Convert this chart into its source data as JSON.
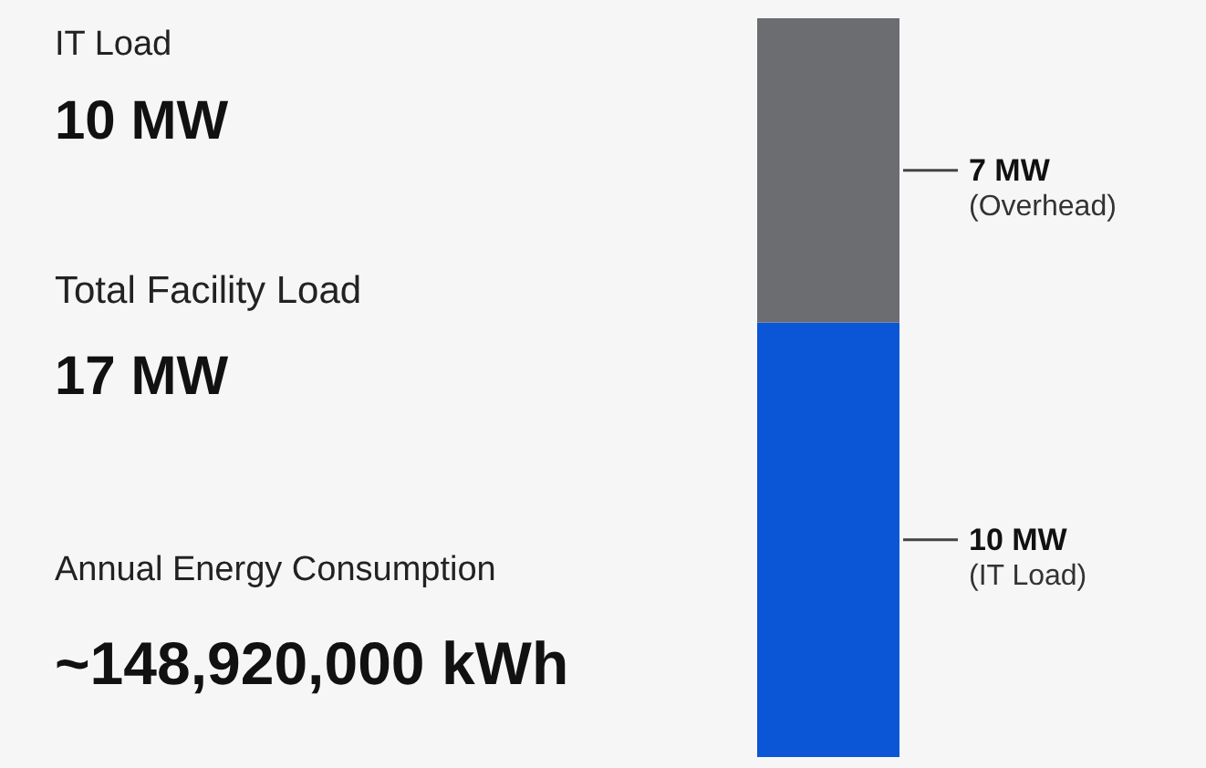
{
  "chart_data": [
    {
      "type": "other",
      "annotations": [
        "IT Load",
        "10 MW",
        "Total Facility Load",
        "17 MW",
        "Annual Energy Consumption",
        "~148,920,000 kWh"
      ]
    },
    {
      "type": "bar",
      "stacked": true,
      "categories": [
        null
      ],
      "legend": false,
      "tick_labels": false,
      "series": [
        {
          "name": "(IT Load)",
          "color": "#0a56d6",
          "values": [
            10
          ],
          "value_labels": [
            "10 MW"
          ]
        },
        {
          "name": "(Overhead)",
          "color": "#6b6d70",
          "values": [
            7
          ],
          "value_labels": [
            "7 MW"
          ]
        }
      ]
    }
  ]
}
